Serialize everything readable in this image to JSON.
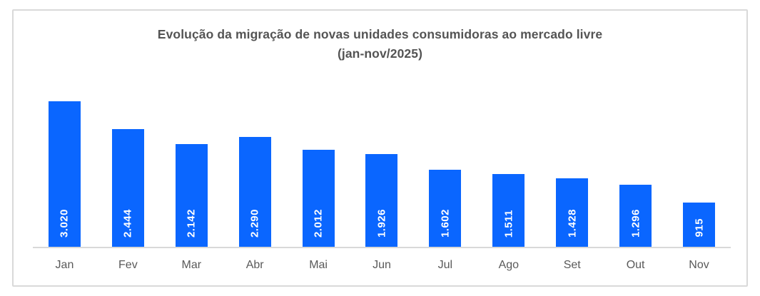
{
  "chart_data": {
    "type": "bar",
    "title": "Evolução da migração de novas unidades consumidoras ao mercado livre",
    "subtitle": "(jan-nov/2025)",
    "categories": [
      "Jan",
      "Fev",
      "Mar",
      "Abr",
      "Mai",
      "Jun",
      "Jul",
      "Ago",
      "Set",
      "Out",
      "Nov"
    ],
    "values": [
      3020,
      2444,
      2142,
      2290,
      2012,
      1926,
      1602,
      1511,
      1428,
      1296,
      915
    ],
    "value_labels": [
      "3.020",
      "2.444",
      "2.142",
      "2.290",
      "2.012",
      "1.926",
      "1.602",
      "1.511",
      "1.428",
      "1.296",
      "915"
    ],
    "ylim": [
      0,
      3500
    ],
    "grid": false,
    "legend": false,
    "y_axis_visible": false,
    "value_label_position": "inside-base-rotated-90",
    "colors": {
      "bar": "#0a66ff",
      "bar_label": "#ffffff",
      "axis": "#d9d9d9",
      "frame": "#d9d9d9",
      "title": "#545454",
      "tick": "#595959",
      "background": "#ffffff"
    }
  }
}
